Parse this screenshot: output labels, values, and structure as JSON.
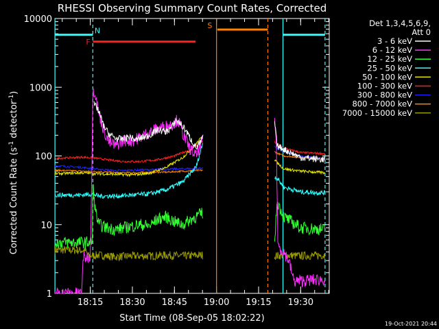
{
  "chart_data": {
    "type": "line",
    "title": "RHESSI Observing Summary Count Rates, Corrected",
    "xlabel": "Start Time (08-Sep-05 18:02:22)",
    "ylabel_main": "Corrected Count Rate (s",
    "ylabel_sup1": "-1",
    "ylabel_mid": " detector",
    "ylabel_sup2": "-1",
    "ylabel_end": ")",
    "yscale": "log",
    "ylim": [
      1,
      10000
    ],
    "xlim_minutes": [
      18.03,
      19.67
    ],
    "ytick_labels": [
      "1",
      "10",
      "100",
      "1000",
      "10000"
    ],
    "yticks": [
      1,
      10,
      100,
      1000,
      10000
    ],
    "xtick_labels": [
      "18:15",
      "18:30",
      "18:45",
      "19:00",
      "19:15",
      "19:30"
    ],
    "xticks_hours": [
      18.25,
      18.5,
      18.75,
      19.0,
      19.25,
      19.5
    ],
    "legend": {
      "header1": "Det 1,3,4,5,6,9,",
      "header2": "Att 0",
      "entries": [
        {
          "label": "3 - 6 keV",
          "color": "#ffffff"
        },
        {
          "label": "6 - 12 keV",
          "color": "#ff30ff"
        },
        {
          "label": "12 - 25 keV",
          "color": "#30ff30"
        },
        {
          "label": "25 - 50 keV",
          "color": "#30ffff"
        },
        {
          "label": "50 - 100 keV",
          "color": "#e6e600"
        },
        {
          "label": "100 - 300 keV",
          "color": "#ff2020"
        },
        {
          "label": "300 - 800 keV",
          "color": "#2020ff"
        },
        {
          "label": "800 - 7000 keV",
          "color": "#ff8000"
        },
        {
          "label": "7000 - 15000 keV",
          "color": "#999900"
        }
      ]
    },
    "flags": [
      {
        "label": "N",
        "color": "#30ffff",
        "start_h": 18.04,
        "end_h": 18.265,
        "level": 5800,
        "label_at_h": 18.255
      },
      {
        "label": "N",
        "color": "#30ffff",
        "start_h": 19.395,
        "end_h": 19.645,
        "level": 5800
      },
      {
        "label": "F",
        "color": "#ff2020",
        "start_h": 18.265,
        "end_h": 18.875,
        "level": 4600,
        "label_at_h": 18.25
      },
      {
        "label": "S",
        "color": "#ff8000",
        "start_h": 19.005,
        "end_h": 19.305,
        "level": 6900,
        "label_at_h": 18.995
      }
    ],
    "boundaries": [
      {
        "h": 18.04,
        "color": "#30ffff",
        "style": "solid"
      },
      {
        "h": 18.265,
        "color": "#30ffff",
        "style": "dashed"
      },
      {
        "h": 19.0,
        "color": "#ff8000",
        "style": "solid"
      },
      {
        "h": 19.305,
        "color": "#ff8000",
        "style": "dashed"
      },
      {
        "h": 19.395,
        "color": "#30ffff",
        "style": "solid"
      },
      {
        "h": 19.645,
        "color": "#30ffff",
        "style": "dashed"
      }
    ],
    "segments": [
      {
        "start_h": 18.04,
        "end_h": 18.92
      },
      {
        "start_h": 19.345,
        "end_h": 19.645
      }
    ],
    "series": [
      {
        "name": "3 - 6 keV",
        "color": "#ffffff",
        "points": [
          [
            18.27,
            560
          ],
          [
            18.29,
            500
          ],
          [
            18.31,
            380
          ],
          [
            18.33,
            270
          ],
          [
            18.36,
            210
          ],
          [
            18.4,
            180
          ],
          [
            18.44,
            175
          ],
          [
            18.48,
            190
          ],
          [
            18.52,
            170
          ],
          [
            18.56,
            185
          ],
          [
            18.6,
            200
          ],
          [
            18.65,
            240
          ],
          [
            18.7,
            225
          ],
          [
            18.73,
            255
          ],
          [
            18.76,
            330
          ],
          [
            18.79,
            290
          ],
          [
            18.82,
            230
          ],
          [
            18.85,
            170
          ],
          [
            18.88,
            130
          ],
          [
            18.9,
            150
          ],
          [
            18.92,
            190
          ]
        ],
        "seg2": [
          [
            19.345,
            320
          ],
          [
            19.36,
            140
          ],
          [
            19.4,
            125
          ],
          [
            19.5,
            95
          ],
          [
            19.645,
            88
          ]
        ]
      },
      {
        "name": "6 - 12 keV",
        "color": "#ff30ff",
        "points": [
          [
            18.04,
            1
          ],
          [
            18.2,
            1
          ],
          [
            18.205,
            3.2
          ],
          [
            18.25,
            3.5
          ],
          [
            18.262,
            180
          ],
          [
            18.265,
            920
          ],
          [
            18.28,
            820
          ],
          [
            18.3,
            420
          ],
          [
            18.33,
            240
          ],
          [
            18.36,
            160
          ],
          [
            18.4,
            140
          ],
          [
            18.45,
            170
          ],
          [
            18.5,
            165
          ],
          [
            18.55,
            190
          ],
          [
            18.6,
            220
          ],
          [
            18.65,
            250
          ],
          [
            18.7,
            270
          ],
          [
            18.74,
            290
          ],
          [
            18.77,
            340
          ],
          [
            18.8,
            210
          ],
          [
            18.84,
            130
          ],
          [
            18.88,
            100
          ],
          [
            18.9,
            130
          ],
          [
            18.92,
            175
          ]
        ],
        "seg2": [
          [
            19.345,
            330
          ],
          [
            19.355,
            180
          ],
          [
            19.365,
            5
          ],
          [
            19.4,
            4
          ],
          [
            19.43,
            3
          ],
          [
            19.46,
            1.5
          ],
          [
            19.645,
            1.6
          ]
        ]
      },
      {
        "name": "12 - 25 keV",
        "color": "#30ff30",
        "points": [
          [
            18.04,
            5.5
          ],
          [
            18.22,
            5.5
          ],
          [
            18.262,
            5.6
          ],
          [
            18.265,
            38
          ],
          [
            18.28,
            16
          ],
          [
            18.3,
            10
          ],
          [
            18.35,
            9
          ],
          [
            18.4,
            8.5
          ],
          [
            18.45,
            9
          ],
          [
            18.5,
            9.5
          ],
          [
            18.55,
            10
          ],
          [
            18.6,
            9.5
          ],
          [
            18.65,
            12
          ],
          [
            18.7,
            13
          ],
          [
            18.75,
            11
          ],
          [
            18.8,
            10
          ],
          [
            18.85,
            12
          ],
          [
            18.9,
            14
          ],
          [
            18.92,
            15
          ]
        ],
        "seg2": [
          [
            19.345,
            5
          ],
          [
            19.36,
            22
          ],
          [
            19.4,
            13
          ],
          [
            19.5,
            9
          ],
          [
            19.645,
            8.5
          ]
        ]
      },
      {
        "name": "25 - 50 keV",
        "color": "#30ffff",
        "points": [
          [
            18.04,
            27
          ],
          [
            18.2,
            27
          ],
          [
            18.265,
            28
          ],
          [
            18.3,
            26
          ],
          [
            18.4,
            26
          ],
          [
            18.5,
            27
          ],
          [
            18.6,
            28
          ],
          [
            18.7,
            32
          ],
          [
            18.8,
            42
          ],
          [
            18.88,
            70
          ],
          [
            18.92,
            160
          ]
        ],
        "seg2": [
          [
            19.345,
            50
          ],
          [
            19.36,
            48
          ],
          [
            19.4,
            35
          ],
          [
            19.5,
            30
          ],
          [
            19.645,
            29
          ]
        ]
      },
      {
        "name": "50 - 100 keV",
        "color": "#e6e600",
        "points": [
          [
            18.04,
            55
          ],
          [
            18.2,
            57
          ],
          [
            18.3,
            55
          ],
          [
            18.4,
            54
          ],
          [
            18.5,
            53
          ],
          [
            18.6,
            56
          ],
          [
            18.7,
            68
          ],
          [
            18.8,
            95
          ],
          [
            18.88,
            150
          ],
          [
            18.92,
            200
          ]
        ],
        "seg2": [
          [
            19.345,
            90
          ],
          [
            19.36,
            80
          ],
          [
            19.4,
            65
          ],
          [
            19.5,
            60
          ],
          [
            19.645,
            57
          ]
        ]
      },
      {
        "name": "100 - 300 keV",
        "color": "#ff2020",
        "points": [
          [
            18.04,
            92
          ],
          [
            18.2,
            96
          ],
          [
            18.265,
            94
          ],
          [
            18.35,
            88
          ],
          [
            18.45,
            83
          ],
          [
            18.55,
            83
          ],
          [
            18.65,
            88
          ],
          [
            18.75,
            100
          ],
          [
            18.85,
            125
          ],
          [
            18.92,
            165
          ]
        ],
        "seg2": [
          [
            19.345,
            160
          ],
          [
            19.36,
            150
          ],
          [
            19.4,
            130
          ],
          [
            19.5,
            112
          ],
          [
            19.645,
            108
          ]
        ]
      },
      {
        "name": "300 - 800 keV",
        "color": "#2020ff",
        "points": [
          [
            18.04,
            72
          ],
          [
            18.2,
            68
          ],
          [
            18.3,
            64
          ],
          [
            18.4,
            61
          ],
          [
            18.5,
            62
          ],
          [
            18.6,
            63
          ],
          [
            18.7,
            64
          ],
          [
            18.8,
            65
          ],
          [
            18.92,
            66
          ]
        ],
        "seg2": [
          [
            19.345,
            140
          ],
          [
            19.36,
            130
          ],
          [
            19.4,
            115
          ],
          [
            19.5,
            100
          ],
          [
            19.645,
            90
          ]
        ]
      },
      {
        "name": "800 - 7000 keV",
        "color": "#ff8000",
        "points": [
          [
            18.04,
            62
          ],
          [
            18.2,
            60
          ],
          [
            18.3,
            59
          ],
          [
            18.4,
            57
          ],
          [
            18.5,
            57
          ],
          [
            18.6,
            58
          ],
          [
            18.7,
            58
          ],
          [
            18.8,
            60
          ],
          [
            18.92,
            62
          ]
        ],
        "seg2": [
          [
            19.345,
            115
          ],
          [
            19.36,
            110
          ],
          [
            19.4,
            100
          ],
          [
            19.5,
            95
          ],
          [
            19.645,
            92
          ]
        ]
      },
      {
        "name": "7000 - 15000 keV",
        "color": "#999900",
        "points": [
          [
            18.04,
            4.3
          ],
          [
            18.22,
            4.2
          ],
          [
            18.24,
            3.5
          ],
          [
            18.3,
            3.6
          ],
          [
            18.4,
            3.4
          ],
          [
            18.5,
            3.5
          ],
          [
            18.6,
            3.5
          ],
          [
            18.7,
            3.6
          ],
          [
            18.8,
            3.5
          ],
          [
            18.92,
            3.6
          ]
        ],
        "seg2": [
          [
            19.345,
            3.5
          ],
          [
            19.4,
            3.6
          ],
          [
            19.5,
            3.5
          ],
          [
            19.645,
            3.6
          ]
        ]
      }
    ]
  },
  "footer": {
    "timestamp": "19-Oct-2021 20:44"
  }
}
